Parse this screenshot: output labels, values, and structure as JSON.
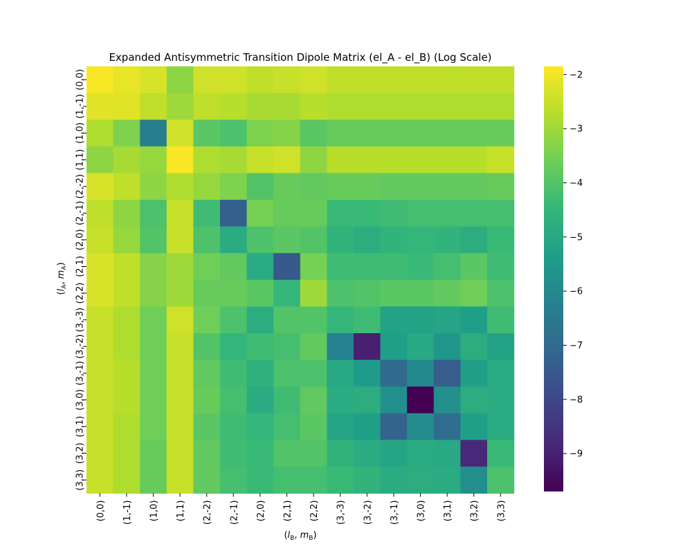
{
  "chart_data": {
    "type": "heatmap",
    "title": "Expanded Antisymmetric Transition Dipole Matrix (el_A - el_B) (Log Scale)",
    "xlabel": "(l_B, m_B)",
    "ylabel": "(l_A, m_A)",
    "x_categories": [
      "(0,0)",
      "(1,-1)",
      "(1,0)",
      "(1,1)",
      "(2,-2)",
      "(2,-1)",
      "(2,0)",
      "(2,1)",
      "(2,2)",
      "(3,-3)",
      "(3,-2)",
      "(3,-1)",
      "(3,0)",
      "(3,1)",
      "(3,2)",
      "(3,3)"
    ],
    "y_categories": [
      "(0,0)",
      "(1,-1)",
      "(1,0)",
      "(1,1)",
      "(2,-2)",
      "(2,-1)",
      "(2,0)",
      "(2,1)",
      "(2,2)",
      "(3,-3)",
      "(3,-2)",
      "(3,-1)",
      "(3,0)",
      "(3,1)",
      "(3,2)",
      "(3,3)"
    ],
    "values": [
      [
        -1.9,
        -2.1,
        -2.3,
        -3.2,
        -2.4,
        -2.4,
        -2.6,
        -2.5,
        -2.4,
        -2.6,
        -2.6,
        -2.6,
        -2.6,
        -2.6,
        -2.6,
        -2.6
      ],
      [
        -2.2,
        -2.2,
        -2.6,
        -3.0,
        -2.6,
        -2.7,
        -2.9,
        -2.9,
        -2.7,
        -2.8,
        -2.8,
        -2.8,
        -2.8,
        -2.8,
        -2.8,
        -2.8
      ],
      [
        -2.8,
        -3.4,
        -6.3,
        -2.4,
        -3.9,
        -4.1,
        -3.4,
        -3.3,
        -3.9,
        -3.7,
        -3.7,
        -3.7,
        -3.7,
        -3.7,
        -3.7,
        -3.7
      ],
      [
        -3.2,
        -2.9,
        -3.1,
        -1.9,
        -2.8,
        -2.9,
        -2.5,
        -2.4,
        -3.2,
        -2.7,
        -2.7,
        -2.7,
        -2.7,
        -2.7,
        -2.7,
        -2.5
      ],
      [
        -2.3,
        -2.6,
        -3.2,
        -2.8,
        -3.1,
        -3.4,
        -4.0,
        -3.7,
        -3.8,
        -3.7,
        -3.7,
        -3.8,
        -3.8,
        -3.8,
        -3.8,
        -3.7
      ],
      [
        -2.6,
        -3.2,
        -4.1,
        -2.5,
        -4.3,
        -7.3,
        -3.5,
        -3.7,
        -3.7,
        -4.4,
        -4.4,
        -4.3,
        -4.2,
        -4.2,
        -4.2,
        -4.2
      ],
      [
        -2.5,
        -3.1,
        -4.0,
        -2.5,
        -4.1,
        -4.9,
        -4.1,
        -3.9,
        -4.0,
        -4.6,
        -4.8,
        -4.6,
        -4.5,
        -4.6,
        -4.8,
        -4.4
      ],
      [
        -2.3,
        -2.6,
        -3.3,
        -3.0,
        -3.6,
        -3.8,
        -4.9,
        -7.5,
        -3.5,
        -4.3,
        -4.3,
        -4.3,
        -4.4,
        -4.2,
        -3.9,
        -4.3
      ],
      [
        -2.3,
        -2.6,
        -3.3,
        -3.0,
        -3.7,
        -3.7,
        -3.9,
        -4.5,
        -3.0,
        -4.1,
        -4.0,
        -3.9,
        -3.9,
        -3.8,
        -3.6,
        -4.1
      ],
      [
        -2.5,
        -2.8,
        -3.6,
        -2.4,
        -3.6,
        -4.1,
        -4.8,
        -4.0,
        -4.0,
        -4.5,
        -4.3,
        -5.2,
        -5.2,
        -5.1,
        -5.3,
        -4.3
      ],
      [
        -2.5,
        -2.8,
        -3.6,
        -2.5,
        -4.0,
        -4.5,
        -4.3,
        -4.2,
        -3.8,
        -6.2,
        -9.0,
        -5.3,
        -5.0,
        -5.6,
        -4.8,
        -5.2
      ],
      [
        -2.5,
        -2.7,
        -3.6,
        -2.5,
        -3.8,
        -4.3,
        -4.7,
        -4.1,
        -4.1,
        -5.0,
        -5.4,
        -7.0,
        -6.0,
        -7.4,
        -5.3,
        -4.9
      ],
      [
        -2.5,
        -2.7,
        -3.6,
        -2.5,
        -3.7,
        -4.2,
        -4.9,
        -4.3,
        -3.8,
        -4.9,
        -4.8,
        -5.8,
        -9.7,
        -5.8,
        -4.8,
        -4.9
      ],
      [
        -2.5,
        -2.8,
        -3.6,
        -2.5,
        -3.9,
        -4.3,
        -4.5,
        -4.2,
        -3.9,
        -5.1,
        -5.3,
        -7.2,
        -5.9,
        -6.9,
        -5.3,
        -4.9
      ],
      [
        -2.5,
        -2.8,
        -3.7,
        -2.5,
        -3.8,
        -4.3,
        -4.4,
        -4.0,
        -4.0,
        -4.6,
        -4.9,
        -5.1,
        -4.9,
        -5.0,
        -8.8,
        -4.4
      ],
      [
        -2.5,
        -2.8,
        -3.7,
        -2.5,
        -3.8,
        -4.2,
        -4.4,
        -4.2,
        -4.2,
        -4.4,
        -4.6,
        -4.9,
        -4.8,
        -4.9,
        -5.8,
        -4.1
      ]
    ],
    "colorbar": {
      "min": -9.7,
      "max": -1.85,
      "ticks": [
        -2,
        -3,
        -4,
        -5,
        -6,
        -7,
        -8,
        -9
      ],
      "tick_labels": [
        "−2",
        "−3",
        "−4",
        "−5",
        "−6",
        "−7",
        "−8",
        "−9"
      ]
    },
    "colormap": "viridis",
    "colormap_stops": [
      "#440154",
      "#482878",
      "#3e4989",
      "#31688e",
      "#26828e",
      "#1f9e89",
      "#35b779",
      "#6ece58",
      "#b5de2b",
      "#fde725"
    ],
    "grid": false,
    "legend": "colorbar-right"
  }
}
